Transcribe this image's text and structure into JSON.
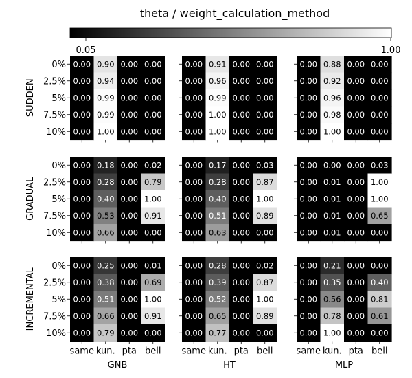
{
  "chart_data": {
    "type": "heatmap",
    "title": "theta / weight_calculation_method",
    "colorbar": {
      "min_label": "0.05",
      "max_label": "1.00",
      "vmin": 0.05,
      "vmax": 1.0,
      "colormap": "grayscale (black to white)"
    },
    "rows": [
      "SUDDEN",
      "GRADUAL",
      "INCREMENTAL"
    ],
    "cols": [
      "GNB",
      "HT",
      "MLP"
    ],
    "y_ticks": [
      "0%",
      "2.5%",
      "5%",
      "7.5%",
      "10%"
    ],
    "x_ticks": [
      "same",
      "kun.",
      "pta",
      "bell"
    ],
    "panels": [
      [
        {
          "row": "SUDDEN",
          "col": "GNB",
          "values": [
            [
              0.0,
              0.9,
              0.0,
              0.0
            ],
            [
              0.0,
              0.94,
              0.0,
              0.0
            ],
            [
              0.0,
              0.99,
              0.0,
              0.0
            ],
            [
              0.0,
              0.99,
              0.0,
              0.0
            ],
            [
              0.0,
              1.0,
              0.0,
              0.0
            ]
          ]
        },
        {
          "row": "SUDDEN",
          "col": "HT",
          "values": [
            [
              0.0,
              0.91,
              0.0,
              0.0
            ],
            [
              0.0,
              0.96,
              0.0,
              0.0
            ],
            [
              0.0,
              0.99,
              0.0,
              0.0
            ],
            [
              0.0,
              1.0,
              0.0,
              0.0
            ],
            [
              0.0,
              1.0,
              0.0,
              0.0
            ]
          ]
        },
        {
          "row": "SUDDEN",
          "col": "MLP",
          "values": [
            [
              0.0,
              0.88,
              0.0,
              0.0
            ],
            [
              0.0,
              0.92,
              0.0,
              0.0
            ],
            [
              0.0,
              0.96,
              0.0,
              0.0
            ],
            [
              0.0,
              0.98,
              0.0,
              0.0
            ],
            [
              0.0,
              1.0,
              0.0,
              0.0
            ]
          ]
        }
      ],
      [
        {
          "row": "GRADUAL",
          "col": "GNB",
          "values": [
            [
              0.0,
              0.18,
              0.0,
              0.02
            ],
            [
              0.0,
              0.28,
              0.0,
              0.79
            ],
            [
              0.0,
              0.4,
              0.0,
              1.0
            ],
            [
              0.0,
              0.53,
              0.0,
              0.91
            ],
            [
              0.0,
              0.66,
              0.0,
              0.0
            ]
          ]
        },
        {
          "row": "GRADUAL",
          "col": "HT",
          "values": [
            [
              0.0,
              0.17,
              0.0,
              0.03
            ],
            [
              0.0,
              0.28,
              0.0,
              0.87
            ],
            [
              0.0,
              0.4,
              0.0,
              1.0
            ],
            [
              0.0,
              0.51,
              0.0,
              0.89
            ],
            [
              0.0,
              0.63,
              0.0,
              0.0
            ]
          ]
        },
        {
          "row": "GRADUAL",
          "col": "MLP",
          "values": [
            [
              0.0,
              0.0,
              0.0,
              0.03
            ],
            [
              0.0,
              0.01,
              0.0,
              1.0
            ],
            [
              0.0,
              0.01,
              0.0,
              1.0
            ],
            [
              0.0,
              0.01,
              0.0,
              0.65
            ],
            [
              0.0,
              0.01,
              0.0,
              0.0
            ]
          ]
        }
      ],
      [
        {
          "row": "INCREMENTAL",
          "col": "GNB",
          "values": [
            [
              0.0,
              0.25,
              0.0,
              0.01
            ],
            [
              0.0,
              0.38,
              0.0,
              0.69
            ],
            [
              0.0,
              0.51,
              0.0,
              1.0
            ],
            [
              0.0,
              0.66,
              0.0,
              0.91
            ],
            [
              0.0,
              0.79,
              0.0,
              0.0
            ]
          ]
        },
        {
          "row": "INCREMENTAL",
          "col": "HT",
          "values": [
            [
              0.0,
              0.28,
              0.0,
              0.02
            ],
            [
              0.0,
              0.39,
              0.0,
              0.87
            ],
            [
              0.0,
              0.52,
              0.0,
              1.0
            ],
            [
              0.0,
              0.65,
              0.0,
              0.89
            ],
            [
              0.0,
              0.77,
              0.0,
              0.0
            ]
          ]
        },
        {
          "row": "INCREMENTAL",
          "col": "MLP",
          "values": [
            [
              0.0,
              0.21,
              0.0,
              0.0
            ],
            [
              0.0,
              0.35,
              0.0,
              0.4
            ],
            [
              0.0,
              0.56,
              0.0,
              0.81
            ],
            [
              0.0,
              0.78,
              0.0,
              0.61
            ],
            [
              0.0,
              1.0,
              0.0,
              0.0
            ]
          ]
        }
      ]
    ]
  }
}
